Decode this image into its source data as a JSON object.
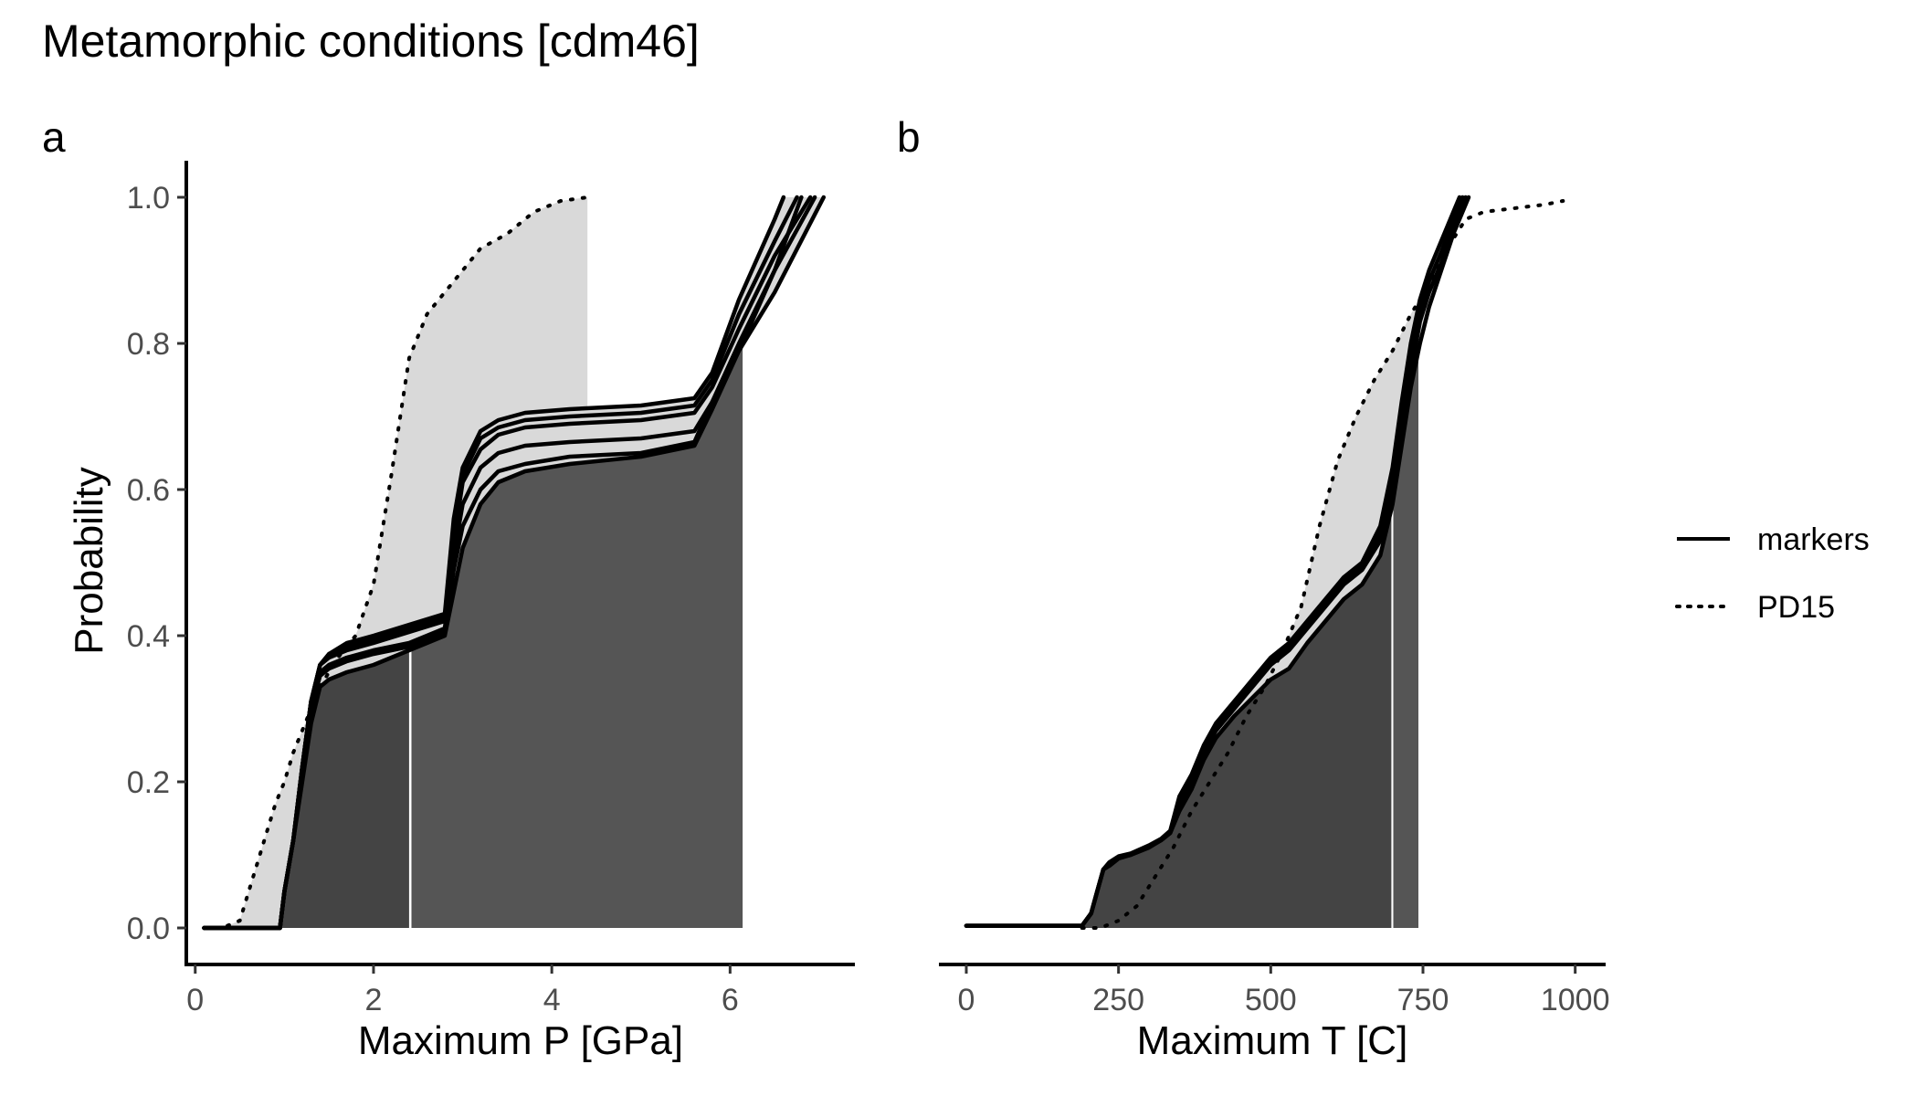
{
  "title": "Metamorphic conditions [cdm46]",
  "legend": {
    "position": "right",
    "items": [
      {
        "label": "markers",
        "line_style": "solid"
      },
      {
        "label": "PD15",
        "line_style": "dotted"
      }
    ]
  },
  "colors": {
    "line": "#000000",
    "fill_dark": "#555555",
    "fill_darker": "#444444",
    "fill_light": "#d9d9d9",
    "tick_text": "#4d4d4d"
  },
  "chart_data": [
    {
      "type": "line",
      "panel_tag": "a",
      "xlabel": "Maximum P [GPa]",
      "ylabel": "Probability",
      "xlim": [
        -0.1,
        7.4
      ],
      "ylim": [
        -0.05,
        1.05
      ],
      "xticks": [
        "0",
        "2",
        "4",
        "6"
      ],
      "yticks": [
        "0.0",
        "0.2",
        "0.4",
        "0.6",
        "0.8",
        "1.0"
      ],
      "grid": false,
      "shaded_region_edges": {
        "low": 2.4,
        "high": 6.15
      },
      "series": [
        {
          "name": "markers",
          "style": "solid",
          "x": [
            0.1,
            0.95,
            1.0,
            1.1,
            1.2,
            1.3,
            1.4,
            1.5,
            1.7,
            2.0,
            2.4,
            2.8,
            2.9,
            3.0,
            3.2,
            3.4,
            3.7,
            4.2,
            5.0,
            5.6,
            5.8,
            6.1,
            6.5,
            6.8
          ],
          "y": [
            0.0,
            0.0,
            0.05,
            0.12,
            0.2,
            0.28,
            0.33,
            0.34,
            0.35,
            0.36,
            0.38,
            0.4,
            0.46,
            0.52,
            0.58,
            0.61,
            0.625,
            0.635,
            0.645,
            0.66,
            0.71,
            0.79,
            0.9,
            1.0
          ]
        },
        {
          "name": "markers",
          "style": "solid",
          "x": [
            0.1,
            0.95,
            1.0,
            1.1,
            1.2,
            1.3,
            1.4,
            1.5,
            1.7,
            2.0,
            2.4,
            2.8,
            2.9,
            3.0,
            3.2,
            3.4,
            3.7,
            4.2,
            5.0,
            5.6,
            5.8,
            6.1,
            6.5,
            6.95
          ],
          "y": [
            0.0,
            0.0,
            0.05,
            0.12,
            0.21,
            0.3,
            0.345,
            0.355,
            0.365,
            0.375,
            0.385,
            0.405,
            0.49,
            0.55,
            0.6,
            0.625,
            0.635,
            0.645,
            0.65,
            0.665,
            0.72,
            0.8,
            0.9,
            1.0
          ]
        },
        {
          "name": "markers",
          "style": "solid",
          "x": [
            0.1,
            0.95,
            1.0,
            1.1,
            1.2,
            1.3,
            1.4,
            1.5,
            1.7,
            2.0,
            2.4,
            2.8,
            2.9,
            3.0,
            3.2,
            3.4,
            3.7,
            4.2,
            5.0,
            5.6,
            5.8,
            6.1,
            6.5,
            7.05
          ],
          "y": [
            0.0,
            0.0,
            0.05,
            0.12,
            0.22,
            0.31,
            0.35,
            0.36,
            0.37,
            0.38,
            0.39,
            0.41,
            0.51,
            0.58,
            0.63,
            0.65,
            0.66,
            0.665,
            0.67,
            0.68,
            0.72,
            0.79,
            0.87,
            1.0
          ]
        },
        {
          "name": "markers",
          "style": "solid",
          "x": [
            0.1,
            0.95,
            1.0,
            1.1,
            1.2,
            1.3,
            1.4,
            1.5,
            1.7,
            2.0,
            2.4,
            2.8,
            2.9,
            3.0,
            3.2,
            3.4,
            3.7,
            4.2,
            5.0,
            5.6,
            5.8,
            6.1,
            6.5,
            6.9
          ],
          "y": [
            0.0,
            0.0,
            0.05,
            0.12,
            0.22,
            0.31,
            0.36,
            0.37,
            0.38,
            0.39,
            0.405,
            0.42,
            0.53,
            0.61,
            0.655,
            0.675,
            0.685,
            0.69,
            0.695,
            0.705,
            0.74,
            0.82,
            0.92,
            1.0
          ]
        },
        {
          "name": "markers",
          "style": "solid",
          "x": [
            0.1,
            0.95,
            1.0,
            1.1,
            1.2,
            1.3,
            1.4,
            1.5,
            1.7,
            2.0,
            2.4,
            2.8,
            2.9,
            3.0,
            3.2,
            3.4,
            3.7,
            4.2,
            5.0,
            5.6,
            5.8,
            6.1,
            6.5,
            6.75
          ],
          "y": [
            0.0,
            0.0,
            0.05,
            0.12,
            0.22,
            0.31,
            0.36,
            0.375,
            0.385,
            0.395,
            0.41,
            0.425,
            0.55,
            0.62,
            0.67,
            0.685,
            0.695,
            0.7,
            0.705,
            0.715,
            0.75,
            0.84,
            0.94,
            1.0
          ]
        },
        {
          "name": "markers",
          "style": "solid",
          "x": [
            0.1,
            0.95,
            1.0,
            1.1,
            1.2,
            1.3,
            1.4,
            1.5,
            1.7,
            2.0,
            2.4,
            2.8,
            2.9,
            3.0,
            3.2,
            3.4,
            3.7,
            4.2,
            5.0,
            5.6,
            5.8,
            6.1,
            6.5,
            6.6
          ],
          "y": [
            0.0,
            0.0,
            0.05,
            0.12,
            0.22,
            0.31,
            0.36,
            0.375,
            0.39,
            0.4,
            0.415,
            0.43,
            0.56,
            0.63,
            0.68,
            0.695,
            0.705,
            0.71,
            0.715,
            0.725,
            0.76,
            0.86,
            0.97,
            1.0
          ]
        },
        {
          "name": "PD15",
          "style": "dotted",
          "x": [
            0.1,
            0.3,
            0.5,
            0.6,
            0.7,
            0.8,
            0.9,
            1.0,
            1.1,
            1.2,
            1.3,
            1.4,
            1.5,
            1.6,
            1.8,
            2.0,
            2.2,
            2.4,
            2.6,
            2.8,
            3.0,
            3.2,
            3.5,
            3.8,
            4.1,
            4.4
          ],
          "y": [
            0.0,
            0.0,
            0.01,
            0.05,
            0.09,
            0.13,
            0.17,
            0.2,
            0.24,
            0.27,
            0.3,
            0.33,
            0.35,
            0.37,
            0.4,
            0.47,
            0.62,
            0.78,
            0.84,
            0.87,
            0.9,
            0.93,
            0.95,
            0.98,
            0.995,
            1.0
          ]
        }
      ]
    },
    {
      "type": "line",
      "panel_tag": "b",
      "xlabel": "Maximum T [C]",
      "ylabel": "",
      "xlim": [
        -45,
        1050
      ],
      "ylim": [
        -0.05,
        1.05
      ],
      "xticks": [
        "0",
        "250",
        "500",
        "750",
        "1000"
      ],
      "yticks": [],
      "grid": false,
      "shaded_region_edges": {
        "low": 700,
        "high": 745
      },
      "series": [
        {
          "name": "markers",
          "style": "solid",
          "x": [
            0,
            190,
            205,
            215,
            225,
            235,
            250,
            270,
            300,
            320,
            335,
            350,
            370,
            390,
            410,
            440,
            470,
            500,
            530,
            560,
            590,
            620,
            650,
            680,
            700,
            715,
            730,
            745,
            760,
            780,
            800,
            820
          ],
          "y": [
            0.003,
            0.003,
            0.02,
            0.05,
            0.08,
            0.085,
            0.095,
            0.1,
            0.11,
            0.12,
            0.13,
            0.17,
            0.2,
            0.24,
            0.27,
            0.3,
            0.33,
            0.36,
            0.38,
            0.41,
            0.44,
            0.47,
            0.49,
            0.53,
            0.6,
            0.68,
            0.76,
            0.83,
            0.87,
            0.91,
            0.96,
            1.0
          ]
        },
        {
          "name": "markers",
          "style": "solid",
          "x": [
            0,
            190,
            205,
            215,
            225,
            235,
            250,
            270,
            300,
            320,
            335,
            350,
            370,
            390,
            410,
            440,
            470,
            500,
            530,
            560,
            590,
            620,
            650,
            680,
            700,
            715,
            730,
            745,
            760,
            780,
            800,
            810
          ],
          "y": [
            0.003,
            0.003,
            0.02,
            0.05,
            0.08,
            0.09,
            0.098,
            0.102,
            0.113,
            0.122,
            0.133,
            0.18,
            0.21,
            0.25,
            0.28,
            0.31,
            0.34,
            0.37,
            0.39,
            0.42,
            0.45,
            0.48,
            0.5,
            0.55,
            0.63,
            0.72,
            0.8,
            0.86,
            0.9,
            0.94,
            0.98,
            1.0
          ]
        },
        {
          "name": "markers",
          "style": "solid",
          "x": [
            0,
            190,
            205,
            215,
            225,
            235,
            250,
            270,
            300,
            320,
            335,
            350,
            370,
            390,
            410,
            440,
            470,
            500,
            530,
            560,
            590,
            620,
            650,
            680,
            700,
            715,
            730,
            745,
            760,
            780,
            800,
            815
          ],
          "y": [
            0.003,
            0.003,
            0.02,
            0.05,
            0.08,
            0.088,
            0.097,
            0.101,
            0.112,
            0.121,
            0.132,
            0.175,
            0.205,
            0.245,
            0.275,
            0.305,
            0.335,
            0.365,
            0.385,
            0.415,
            0.445,
            0.475,
            0.495,
            0.54,
            0.62,
            0.7,
            0.78,
            0.845,
            0.885,
            0.925,
            0.97,
            1.0
          ]
        },
        {
          "name": "markers",
          "style": "solid",
          "x": [
            0,
            190,
            205,
            215,
            225,
            235,
            250,
            270,
            300,
            320,
            335,
            350,
            370,
            390,
            410,
            440,
            470,
            500,
            530,
            560,
            590,
            620,
            650,
            680,
            700,
            715,
            730,
            745,
            760,
            780,
            800,
            825
          ],
          "y": [
            0.003,
            0.003,
            0.02,
            0.05,
            0.08,
            0.086,
            0.096,
            0.1,
            0.111,
            0.12,
            0.13,
            0.16,
            0.19,
            0.23,
            0.26,
            0.29,
            0.315,
            0.34,
            0.355,
            0.39,
            0.42,
            0.45,
            0.47,
            0.51,
            0.58,
            0.66,
            0.74,
            0.8,
            0.85,
            0.9,
            0.95,
            1.0
          ]
        },
        {
          "name": "PD15",
          "style": "dotted",
          "x": [
            190,
            220,
            250,
            280,
            310,
            340,
            370,
            400,
            430,
            460,
            490,
            520,
            550,
            580,
            610,
            640,
            670,
            700,
            730,
            760,
            790,
            820,
            850,
            900,
            950,
            980
          ],
          "y": [
            0.0,
            0.0,
            0.01,
            0.03,
            0.07,
            0.11,
            0.16,
            0.2,
            0.24,
            0.29,
            0.33,
            0.38,
            0.44,
            0.55,
            0.64,
            0.7,
            0.75,
            0.79,
            0.84,
            0.88,
            0.93,
            0.97,
            0.98,
            0.985,
            0.99,
            0.995
          ]
        }
      ]
    }
  ]
}
